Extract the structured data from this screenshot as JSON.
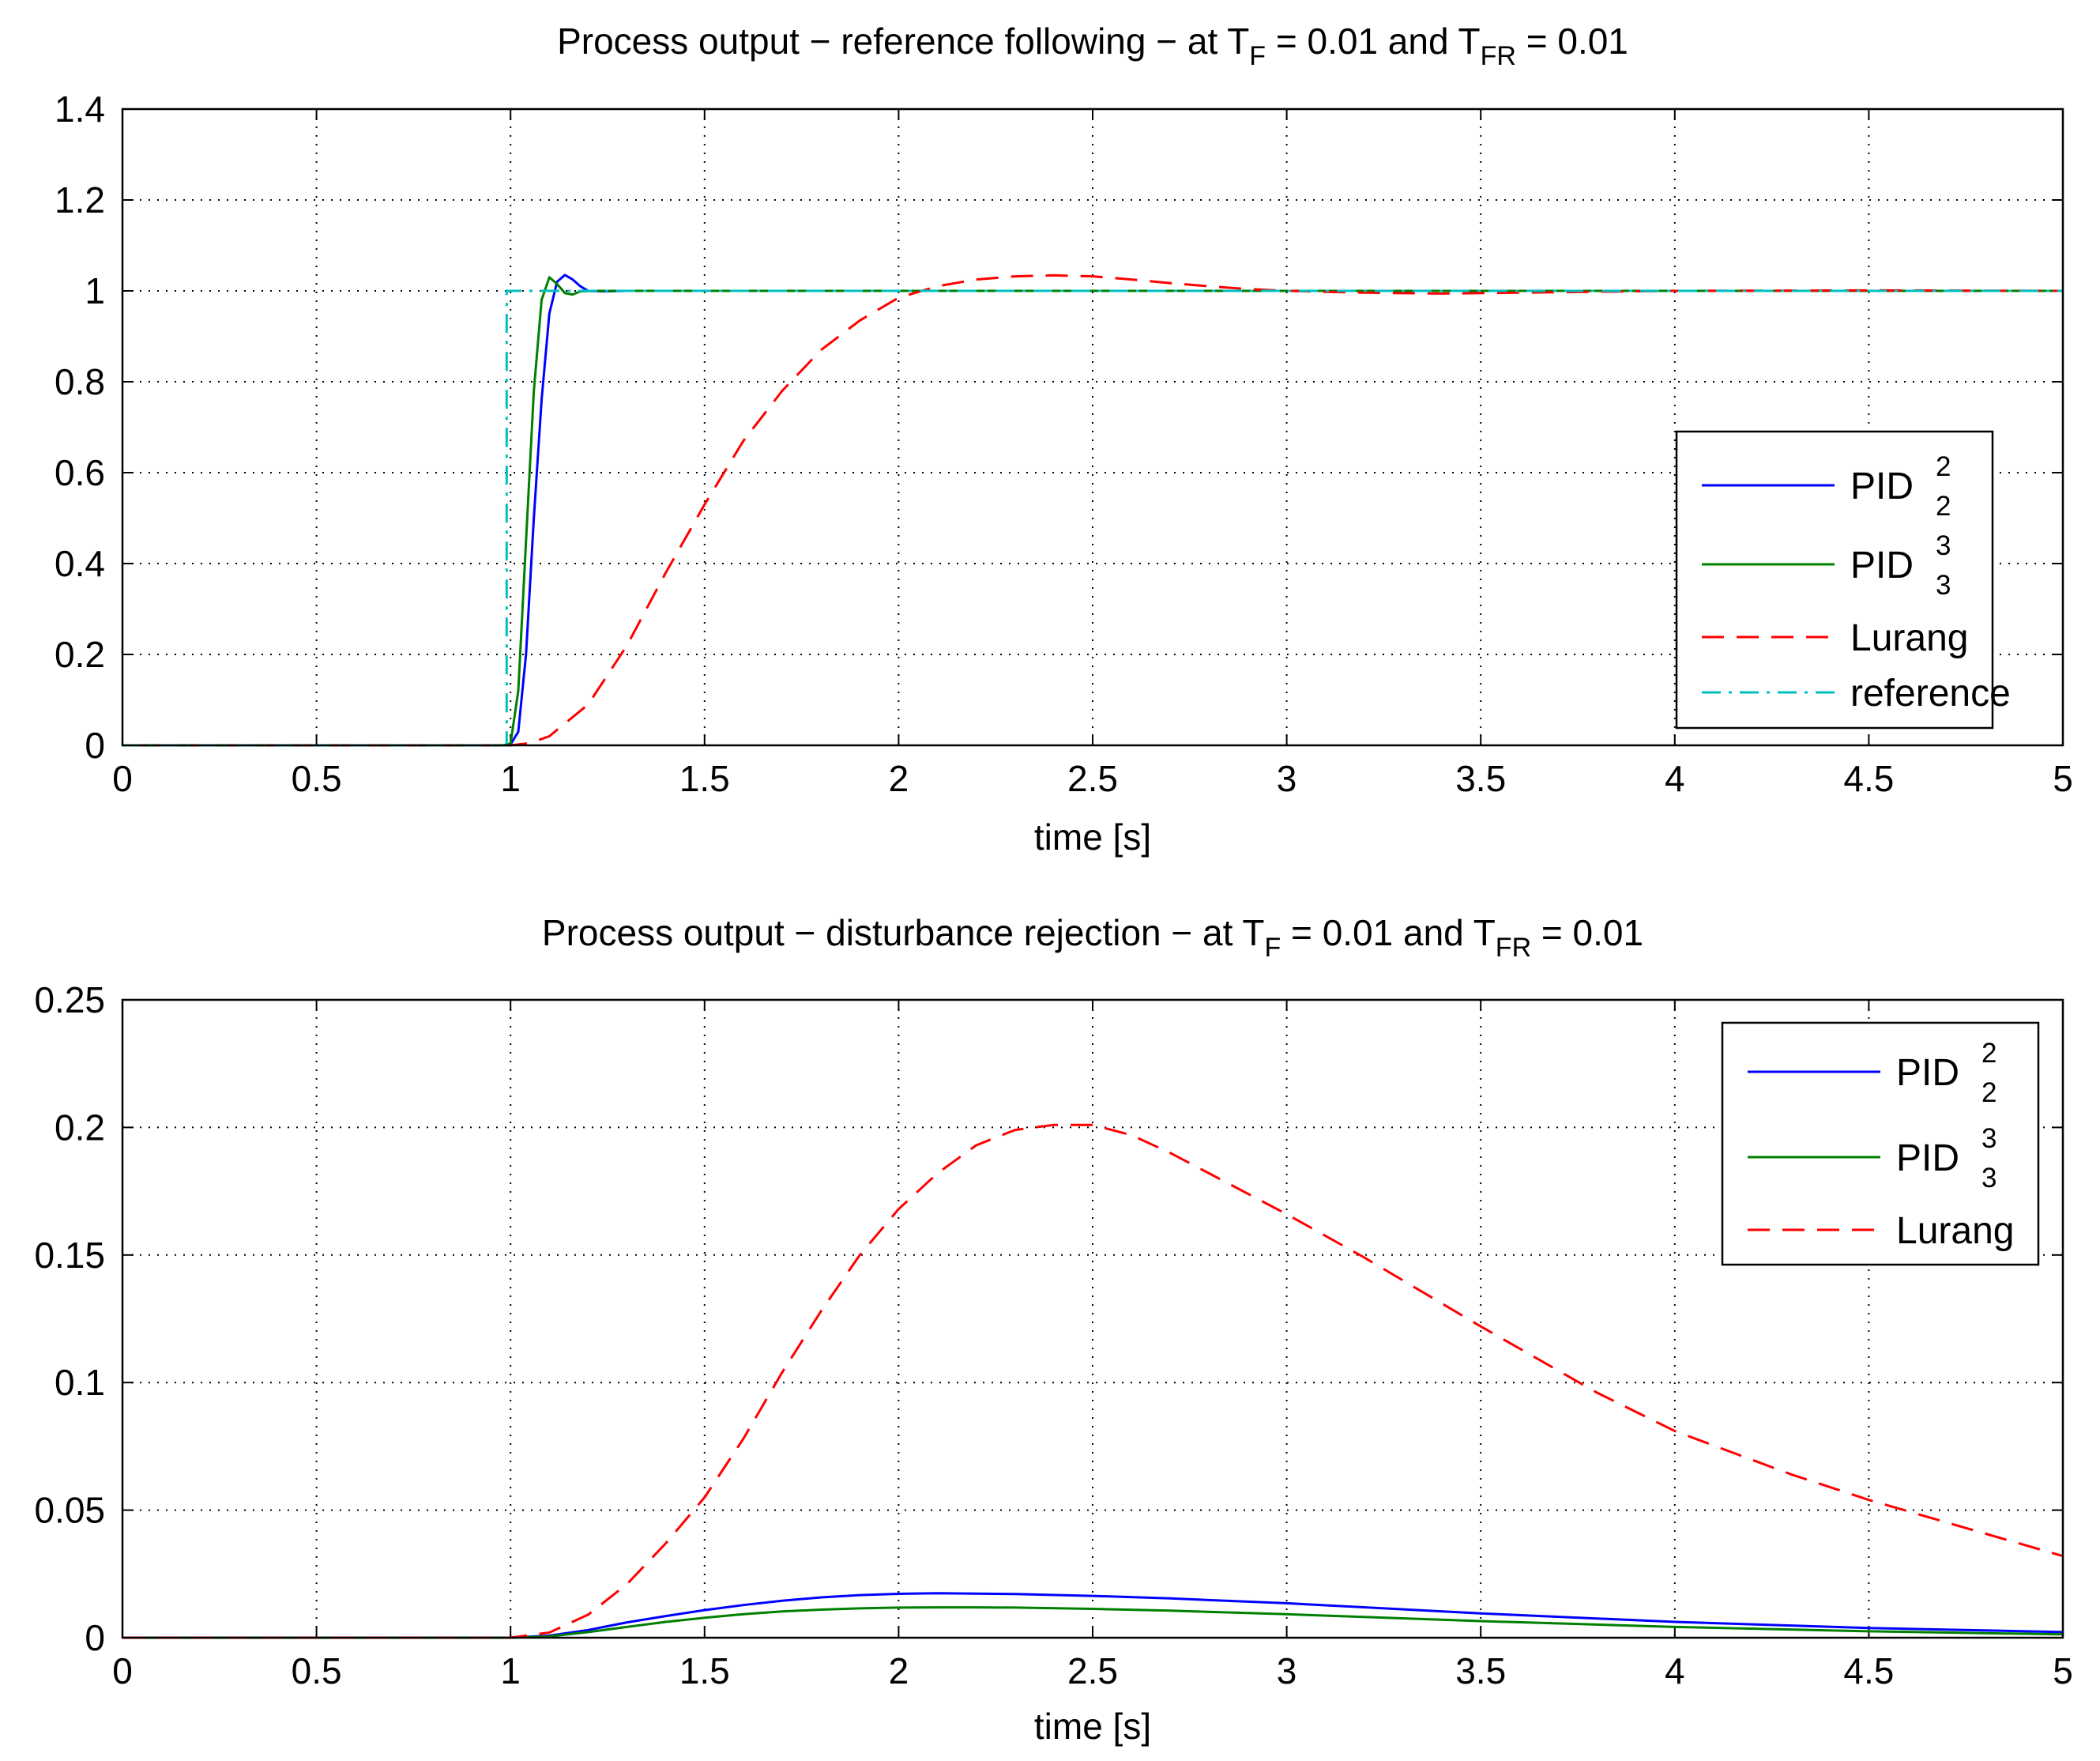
{
  "figure": {
    "background": "#ffffff"
  },
  "chart_data": [
    {
      "id": "top",
      "type": "line",
      "title": {
        "prefix": "Process output − reference following − at T",
        "sub1": "F",
        "mid": " = 0.01 and T",
        "sub2": "FR",
        "suffix": " = 0.01"
      },
      "xlabel": "time [s]",
      "ylabel": "",
      "xlim": [
        0,
        5
      ],
      "ylim": [
        0,
        1.4
      ],
      "xticks": [
        0,
        0.5,
        1,
        1.5,
        2,
        2.5,
        3,
        3.5,
        4,
        4.5,
        5
      ],
      "xtick_labels": [
        "0",
        "0.5",
        "1",
        "1.5",
        "2",
        "2.5",
        "3",
        "3.5",
        "4",
        "4.5",
        "5"
      ],
      "yticks": [
        0,
        0.2,
        0.4,
        0.6,
        0.8,
        1,
        1.2,
        1.4
      ],
      "ytick_labels": [
        "0",
        "0.2",
        "0.4",
        "0.6",
        "0.8",
        "1",
        "1.2",
        "1.4"
      ],
      "grid": true,
      "legend_position": "right",
      "series": [
        {
          "name": "PID",
          "sup": "2",
          "sub": "2",
          "color": "#0000ff",
          "dash": "solid",
          "x": [
            0,
            0.98,
            1.0,
            1.02,
            1.04,
            1.06,
            1.08,
            1.1,
            1.12,
            1.14,
            1.16,
            1.18,
            1.2,
            1.24,
            1.3,
            5
          ],
          "y": [
            0,
            0,
            0.002,
            0.03,
            0.2,
            0.5,
            0.76,
            0.95,
            1.02,
            1.035,
            1.025,
            1.01,
            1.0,
            0.999,
            1.0,
            1.0
          ]
        },
        {
          "name": "PID",
          "sup": "3",
          "sub": "3",
          "color": "#007f00",
          "dash": "solid",
          "x": [
            0,
            0.98,
            1.0,
            1.02,
            1.04,
            1.06,
            1.08,
            1.1,
            1.12,
            1.14,
            1.16,
            1.18,
            1.22,
            1.3,
            5
          ],
          "y": [
            0,
            0,
            0.004,
            0.12,
            0.45,
            0.78,
            0.98,
            1.03,
            1.015,
            0.995,
            0.992,
            0.999,
            1.0,
            1.0,
            1.0
          ]
        },
        {
          "name": "Lurang",
          "sup": "",
          "sub": "",
          "color": "#ff0000",
          "dash": "dashed",
          "x": [
            0,
            1.0,
            1.05,
            1.1,
            1.2,
            1.3,
            1.4,
            1.5,
            1.6,
            1.7,
            1.8,
            1.9,
            2.0,
            2.1,
            2.2,
            2.3,
            2.4,
            2.5,
            2.6,
            2.7,
            2.8,
            2.9,
            3.0,
            3.2,
            3.4,
            3.6,
            3.8,
            4.0,
            4.5,
            5.0
          ],
          "y": [
            0,
            0,
            0.005,
            0.02,
            0.09,
            0.22,
            0.38,
            0.53,
            0.67,
            0.78,
            0.87,
            0.935,
            0.985,
            1.01,
            1.025,
            1.032,
            1.034,
            1.032,
            1.025,
            1.017,
            1.01,
            1.004,
            1.0,
            0.996,
            0.994,
            0.996,
            0.998,
            1.0,
            1.001,
            1.0
          ]
        },
        {
          "name": "reference",
          "sup": "",
          "sub": "",
          "color": "#00bfbf",
          "dash": "dashdot",
          "x": [
            0,
            0.99,
            0.99,
            5
          ],
          "y": [
            0,
            0,
            1,
            1
          ]
        }
      ]
    },
    {
      "id": "bottom",
      "type": "line",
      "title": {
        "prefix": "Process output − disturbance rejection − at T",
        "sub1": "F",
        "mid": " = 0.01 and T",
        "sub2": "FR",
        "suffix": " = 0.01"
      },
      "xlabel": "time [s]",
      "ylabel": "",
      "xlim": [
        0,
        5
      ],
      "ylim": [
        0,
        0.25
      ],
      "xticks": [
        0,
        0.5,
        1,
        1.5,
        2,
        2.5,
        3,
        3.5,
        4,
        4.5,
        5
      ],
      "xtick_labels": [
        "0",
        "0.5",
        "1",
        "1.5",
        "2",
        "2.5",
        "3",
        "3.5",
        "4",
        "4.5",
        "5"
      ],
      "yticks": [
        0,
        0.05,
        0.1,
        0.15,
        0.2,
        0.25
      ],
      "ytick_labels": [
        "0",
        "0.05",
        "0.1",
        "0.15",
        "0.2",
        "0.25"
      ],
      "grid": true,
      "legend_position": "top-right",
      "series": [
        {
          "name": "PID",
          "sup": "2",
          "sub": "2",
          "color": "#0000ff",
          "dash": "solid",
          "x": [
            0,
            1.0,
            1.1,
            1.2,
            1.3,
            1.4,
            1.5,
            1.6,
            1.7,
            1.8,
            1.9,
            2.0,
            2.1,
            2.2,
            2.3,
            2.5,
            2.7,
            3.0,
            3.5,
            4.0,
            4.5,
            5.0
          ],
          "y": [
            0,
            0,
            0.0008,
            0.003,
            0.006,
            0.0085,
            0.0108,
            0.0128,
            0.0145,
            0.0158,
            0.0167,
            0.0172,
            0.0174,
            0.0173,
            0.0171,
            0.0164,
            0.0154,
            0.0135,
            0.0095,
            0.0062,
            0.0038,
            0.0022
          ]
        },
        {
          "name": "PID",
          "sup": "3",
          "sub": "3",
          "color": "#007f00",
          "dash": "solid",
          "x": [
            0,
            1.0,
            1.1,
            1.2,
            1.3,
            1.4,
            1.5,
            1.6,
            1.7,
            1.8,
            1.9,
            2.0,
            2.1,
            2.2,
            2.3,
            2.5,
            2.7,
            3.0,
            3.5,
            4.0,
            4.5,
            5.0
          ],
          "y": [
            0,
            0,
            0.0005,
            0.0022,
            0.0042,
            0.0062,
            0.0078,
            0.0092,
            0.0103,
            0.011,
            0.0115,
            0.0118,
            0.0119,
            0.0119,
            0.0118,
            0.0113,
            0.0106,
            0.0092,
            0.0065,
            0.0042,
            0.0025,
            0.0013
          ]
        },
        {
          "name": "Lurang",
          "sup": "",
          "sub": "",
          "color": "#ff0000",
          "dash": "dashed",
          "x": [
            0,
            1.0,
            1.1,
            1.2,
            1.3,
            1.4,
            1.5,
            1.6,
            1.7,
            1.8,
            1.9,
            2.0,
            2.1,
            2.2,
            2.3,
            2.4,
            2.5,
            2.6,
            2.7,
            2.8,
            3.0,
            3.2,
            3.5,
            3.8,
            4.0,
            4.3,
            4.5,
            5.0
          ],
          "y": [
            0,
            0,
            0.002,
            0.009,
            0.021,
            0.037,
            0.055,
            0.078,
            0.104,
            0.128,
            0.15,
            0.168,
            0.182,
            0.193,
            0.199,
            0.201,
            0.201,
            0.197,
            0.19,
            0.182,
            0.166,
            0.149,
            0.122,
            0.096,
            0.081,
            0.064,
            0.054,
            0.032
          ]
        }
      ]
    }
  ]
}
